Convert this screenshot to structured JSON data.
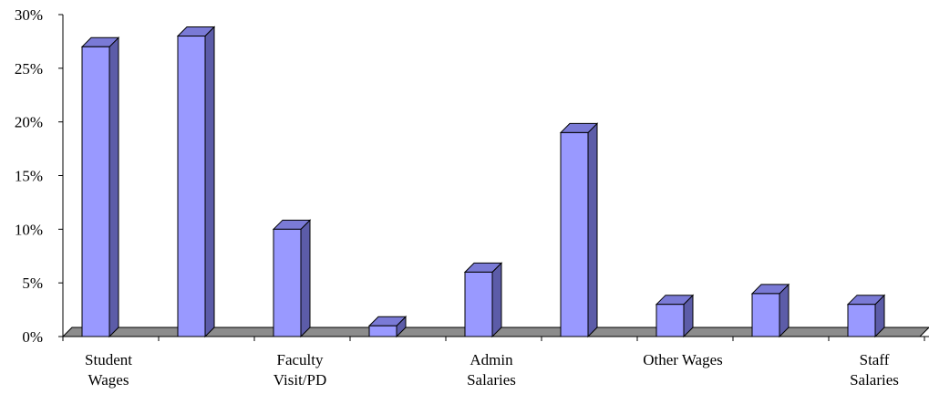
{
  "chart_data": {
    "type": "bar",
    "style": "3d-column",
    "title": "",
    "xlabel": "",
    "ylabel": "",
    "ylim": [
      0,
      30
    ],
    "yticks": [
      0,
      5,
      10,
      15,
      20,
      25,
      30
    ],
    "ytick_labels": [
      "0%",
      "5%",
      "10%",
      "15%",
      "20%",
      "25%",
      "30%"
    ],
    "categories": [
      "Student Wages",
      "",
      "Faculty Visit/PD",
      "",
      "Admin Salaries",
      "",
      "Other Wages",
      "",
      "Staff Salaries"
    ],
    "category_label_lines": [
      [
        "Student",
        "Wages"
      ],
      [],
      [
        "Faculty",
        "Visit/PD"
      ],
      [],
      [
        "Admin",
        "Salaries"
      ],
      [],
      [
        "Other Wages"
      ],
      [],
      [
        "Staff",
        "Salaries"
      ]
    ],
    "series": [
      {
        "values": [
          27,
          28,
          10,
          1,
          6,
          19,
          3,
          4,
          3
        ]
      }
    ],
    "grid": false,
    "legend": "none",
    "colors": {
      "bar_front": "#9999ff",
      "bar_side": "#5c5ca8",
      "bar_top": "#7a7ad6",
      "floor": "#8c8c8c",
      "axis": "#000000"
    }
  }
}
